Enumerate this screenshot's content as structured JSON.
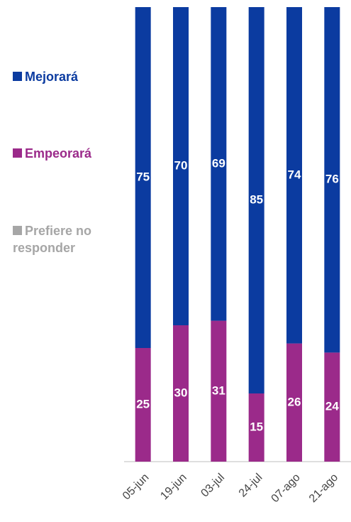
{
  "chart_data": {
    "type": "stacked-bar",
    "categories": [
      "05-jun",
      "19-jun",
      "03-jul",
      "24-jul",
      "07-ago",
      "21-ago"
    ],
    "series": [
      {
        "name": "Empeorará",
        "color": "#9b2a8a",
        "values": [
          25,
          30,
          31,
          15,
          26,
          24
        ]
      },
      {
        "name": "Mejorará",
        "color": "#0b3ba0",
        "values": [
          75,
          70,
          69,
          85,
          74,
          76
        ]
      },
      {
        "name": "Prefiere no responder",
        "color": "#a6a6a6",
        "values": [
          0,
          0,
          0,
          0,
          0,
          0
        ]
      }
    ],
    "ylim": [
      0,
      100
    ]
  }
}
